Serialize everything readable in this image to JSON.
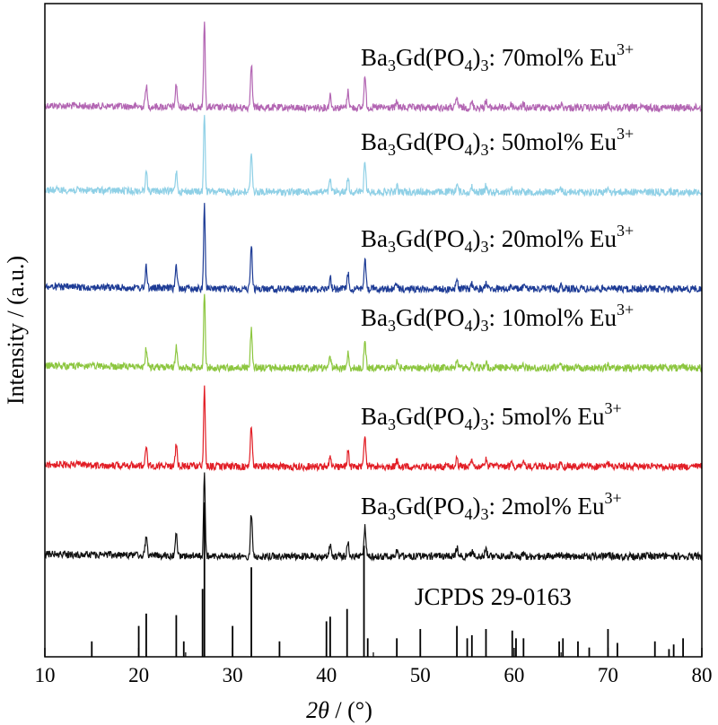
{
  "chart_data": {
    "type": "line",
    "xlabel_italic": "2θ",
    "xlabel_rest": " / (°)",
    "ylabel": "Intensity / (a.u.)",
    "xlim": [
      10,
      80
    ],
    "x_ticks": [
      10,
      20,
      30,
      40,
      50,
      60,
      70,
      80
    ],
    "grid": false,
    "reference": {
      "name": "JCPDS 29-0163",
      "peaks": [
        {
          "x": 15.0,
          "y": 0.1
        },
        {
          "x": 20.0,
          "y": 0.2
        },
        {
          "x": 20.8,
          "y": 0.28
        },
        {
          "x": 24.0,
          "y": 0.27
        },
        {
          "x": 24.8,
          "y": 0.1
        },
        {
          "x": 26.8,
          "y": 0.44
        },
        {
          "x": 27.0,
          "y": 1.0
        },
        {
          "x": 30.0,
          "y": 0.2
        },
        {
          "x": 32.0,
          "y": 0.58
        },
        {
          "x": 35.0,
          "y": 0.1
        },
        {
          "x": 40.0,
          "y": 0.23
        },
        {
          "x": 40.4,
          "y": 0.26
        },
        {
          "x": 42.2,
          "y": 0.31
        },
        {
          "x": 44.0,
          "y": 0.72
        },
        {
          "x": 44.4,
          "y": 0.12
        },
        {
          "x": 47.5,
          "y": 0.12
        },
        {
          "x": 50.0,
          "y": 0.18
        },
        {
          "x": 53.9,
          "y": 0.2
        },
        {
          "x": 55.0,
          "y": 0.12
        },
        {
          "x": 55.5,
          "y": 0.14
        },
        {
          "x": 57.0,
          "y": 0.18
        },
        {
          "x": 59.8,
          "y": 0.17
        },
        {
          "x": 60.2,
          "y": 0.12
        },
        {
          "x": 61.0,
          "y": 0.12
        },
        {
          "x": 64.8,
          "y": 0.1
        },
        {
          "x": 65.2,
          "y": 0.12
        },
        {
          "x": 66.8,
          "y": 0.1
        },
        {
          "x": 68.0,
          "y": 0.06
        },
        {
          "x": 70.0,
          "y": 0.18
        },
        {
          "x": 71.0,
          "y": 0.09
        },
        {
          "x": 75.0,
          "y": 0.1
        },
        {
          "x": 76.5,
          "y": 0.05
        },
        {
          "x": 77.0,
          "y": 0.08
        },
        {
          "x": 78.0,
          "y": 0.12
        }
      ]
    },
    "peaks": [
      {
        "x": 20.8,
        "y": 0.25
      },
      {
        "x": 24.0,
        "y": 0.27
      },
      {
        "x": 27.0,
        "y": 1.0
      },
      {
        "x": 32.0,
        "y": 0.52
      },
      {
        "x": 40.4,
        "y": 0.15
      },
      {
        "x": 42.3,
        "y": 0.19
      },
      {
        "x": 44.1,
        "y": 0.37
      },
      {
        "x": 47.5,
        "y": 0.07
      },
      {
        "x": 53.9,
        "y": 0.11
      },
      {
        "x": 55.5,
        "y": 0.06
      },
      {
        "x": 57.0,
        "y": 0.08
      },
      {
        "x": 59.7,
        "y": 0.04
      },
      {
        "x": 61.0,
        "y": 0.04
      },
      {
        "x": 65.0,
        "y": 0.04
      },
      {
        "x": 70.0,
        "y": 0.04
      }
    ],
    "series": [
      {
        "name_base": "Ba",
        "name_sub1": "3",
        "name_mid": "Gd(PO",
        "name_sub2": "4",
        "name_after": ")",
        "name_sub3": "3",
        "name_rest": ": 70mol% Eu",
        "name_sup": "3+",
        "color": "#b366b3"
      },
      {
        "name_base": "Ba",
        "name_sub1": "3",
        "name_mid": "Gd(PO",
        "name_sub2": "4",
        "name_after": ")",
        "name_sub3": "3",
        "name_rest": ": 50mol% Eu",
        "name_sup": "3+",
        "color": "#8fd0e6"
      },
      {
        "name_base": "Ba",
        "name_sub1": "3",
        "name_mid": "Gd(PO",
        "name_sub2": "4",
        "name_after": ")",
        "name_sub3": "3",
        "name_rest": ": 20mol% Eu",
        "name_sup": "3+",
        "color": "#1e3c96"
      },
      {
        "name_base": "Ba",
        "name_sub1": "3",
        "name_mid": "Gd(PO",
        "name_sub2": "4",
        "name_after": ")",
        "name_sub3": "3",
        "name_rest": ": 10mol% Eu",
        "name_sup": "3+",
        "color": "#8cc63f"
      },
      {
        "name_base": "Ba",
        "name_sub1": "3",
        "name_mid": "Gd(PO",
        "name_sub2": "4",
        "name_after": ")",
        "name_sub3": "3",
        "name_rest": ": 5mol% Eu",
        "name_sup": "3+",
        "color": "#e21e26"
      },
      {
        "name_base": "Ba",
        "name_sub1": "3",
        "name_mid": "Gd(PO",
        "name_sub2": "4",
        "name_after": ")",
        "name_sub3": "3",
        "name_rest": ": 2mol% Eu",
        "name_sup": "3+",
        "color": "#111111"
      }
    ]
  }
}
